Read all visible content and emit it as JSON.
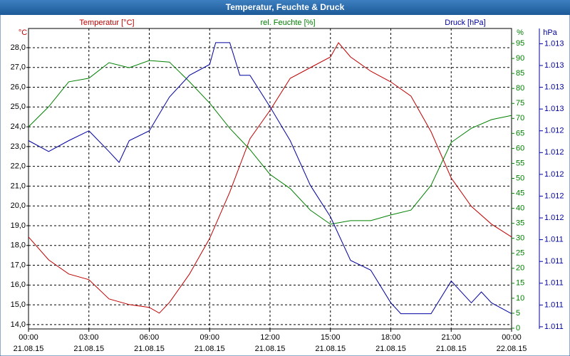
{
  "chart_data": {
    "type": "line",
    "title": "Temperatur, Feuchte & Druck",
    "ylabel": "Temperatur [°C]",
    "yunit": "°C",
    "y2label": "rel. Feuchte [%]",
    "y2unit": "%",
    "y3label": "Druck [hPa]",
    "y3unit": "hPa",
    "grid": true,
    "xlim": [
      0,
      24
    ],
    "xticks": [
      {
        "value": 0,
        "label": "00:00"
      },
      {
        "value": 3,
        "label": "03:00"
      },
      {
        "value": 6,
        "label": "06:00"
      },
      {
        "value": 9,
        "label": "09:00"
      },
      {
        "value": 12,
        "label": "12:00"
      },
      {
        "value": 15,
        "label": "15:00"
      },
      {
        "value": 18,
        "label": "18:00"
      },
      {
        "value": 21,
        "label": "21:00"
      },
      {
        "value": 24,
        "label": "00:00"
      }
    ],
    "xtick_dates": [
      "21.08.15",
      "21.08.15",
      "21.08.15",
      "21.08.15",
      "21.08.15",
      "21.08.15",
      "21.08.15",
      "21.08.15",
      "22.08.15"
    ],
    "ylim": [
      13.78,
      28.97
    ],
    "yticks": [
      {
        "value": 14,
        "label": "14,0"
      },
      {
        "value": 15,
        "label": "15,0"
      },
      {
        "value": 16,
        "label": "16,0"
      },
      {
        "value": 17,
        "label": "17,0"
      },
      {
        "value": 18,
        "label": "18,0"
      },
      {
        "value": 19,
        "label": "19,0"
      },
      {
        "value": 20,
        "label": "20,0"
      },
      {
        "value": 21,
        "label": "21,0"
      },
      {
        "value": 22,
        "label": "22,0"
      },
      {
        "value": 23,
        "label": "23,0"
      },
      {
        "value": 24,
        "label": "24,0"
      },
      {
        "value": 25,
        "label": "25,0"
      },
      {
        "value": 26,
        "label": "26,0"
      },
      {
        "value": 27,
        "label": "27,0"
      },
      {
        "value": 28,
        "label": "28,0"
      }
    ],
    "y2lim": [
      -0.24,
      100
    ],
    "y2ticks": [
      0,
      5,
      10,
      15,
      20,
      25,
      30,
      35,
      40,
      45,
      50,
      55,
      60,
      65,
      70,
      75,
      80,
      85,
      90,
      95
    ],
    "y3lim": [
      1.01063,
      1.01339
    ],
    "y3ticks": [
      {
        "value": 1.01065,
        "label": "1.011"
      },
      {
        "value": 1.01085,
        "label": "1.011"
      },
      {
        "value": 1.01105,
        "label": "1.011"
      },
      {
        "value": 1.01125,
        "label": "1.011"
      },
      {
        "value": 1.01145,
        "label": "1.011"
      },
      {
        "value": 1.01165,
        "label": "1.012"
      },
      {
        "value": 1.01185,
        "label": "1.012"
      },
      {
        "value": 1.01205,
        "label": "1.012"
      },
      {
        "value": 1.01225,
        "label": "1.012"
      },
      {
        "value": 1.01245,
        "label": "1.012"
      },
      {
        "value": 1.01265,
        "label": "1.013"
      },
      {
        "value": 1.01285,
        "label": "1.013"
      },
      {
        "value": 1.01305,
        "label": "1.013"
      },
      {
        "value": 1.01325,
        "label": "1.013"
      }
    ],
    "series": [
      {
        "name": "Temperatur [°C]",
        "color": "#c00000",
        "axis": "y",
        "x": [
          0,
          1,
          2,
          3,
          4,
          5,
          6,
          6.5,
          7,
          8,
          9,
          10,
          11,
          12,
          13,
          14,
          15,
          15.4,
          16,
          17,
          18,
          19,
          20,
          21,
          22,
          23,
          24
        ],
        "values": [
          18.43,
          17.27,
          16.56,
          16.27,
          15.3,
          15.01,
          14.87,
          14.58,
          15.12,
          16.56,
          18.36,
          20.7,
          23.39,
          24.83,
          26.45,
          26.99,
          27.53,
          28.25,
          27.53,
          26.81,
          26.27,
          25.55,
          23.75,
          21.41,
          19.98,
          19.08,
          18.43
        ]
      },
      {
        "name": "rel. Feuchte [%]",
        "color": "#008000",
        "axis": "y2",
        "x": [
          0,
          1,
          2,
          3,
          4,
          5,
          6,
          7,
          8,
          9,
          10,
          11,
          12,
          13,
          14,
          15,
          16,
          17,
          18,
          19,
          20,
          21,
          22,
          23,
          24
        ],
        "values": [
          67.2,
          73.9,
          82.2,
          83.4,
          88.6,
          86.9,
          89.3,
          88.8,
          82.2,
          75.1,
          66.7,
          59.6,
          51.3,
          46.6,
          39.4,
          34.7,
          35.9,
          35.9,
          37.8,
          39.4,
          47.7,
          62.0,
          66.7,
          69.6,
          71.0
        ]
      },
      {
        "name": "Druck [hPa]",
        "color": "#0000a0",
        "axis": "y3",
        "x": [
          0,
          1,
          2,
          3,
          4,
          4.5,
          5,
          6,
          7,
          8,
          9,
          9.3,
          10,
          10.5,
          11,
          12,
          13,
          14,
          15,
          16,
          17,
          18,
          18.5,
          19,
          20,
          21,
          22,
          22.5,
          23,
          24
        ],
        "values": [
          1.01236,
          1.01226,
          1.01236,
          1.01245,
          1.01226,
          1.01216,
          1.01236,
          1.01245,
          1.01276,
          1.01296,
          1.01306,
          1.01326,
          1.01326,
          1.01296,
          1.01296,
          1.01267,
          1.01236,
          1.01195,
          1.01166,
          1.01126,
          1.01117,
          1.01087,
          1.01077,
          1.01077,
          1.01077,
          1.01107,
          1.01087,
          1.01097,
          1.01087,
          1.01077
        ]
      }
    ]
  }
}
